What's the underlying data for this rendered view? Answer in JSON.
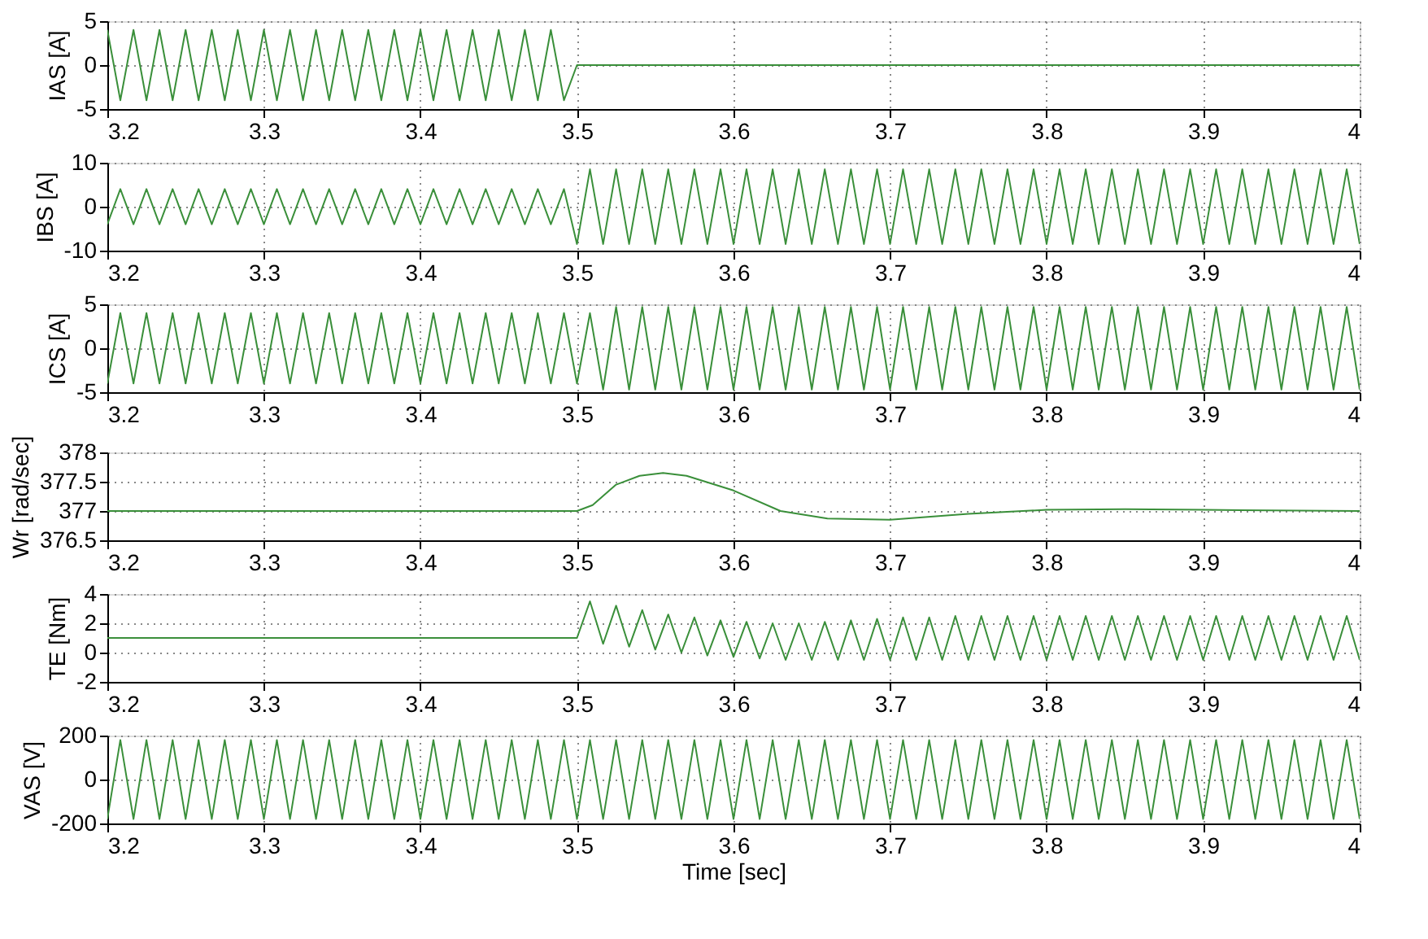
{
  "chart_data": [
    {
      "type": "line",
      "ylabel": "IAS [A]",
      "xlim": [
        3.2,
        4
      ],
      "xticks": [
        3.2,
        3.3,
        3.4,
        3.5,
        3.6,
        3.7,
        3.8,
        3.9,
        4
      ],
      "ylim": [
        -5,
        5
      ],
      "yticks": [
        -5,
        0,
        5
      ],
      "grid": true,
      "x": [
        3.2,
        3.2083,
        3.2167,
        3.225,
        3.2333,
        3.2417,
        3.25,
        3.2583,
        3.2667,
        3.275,
        3.2833,
        3.2917,
        3.3,
        3.3083,
        3.3167,
        3.325,
        3.3333,
        3.3417,
        3.35,
        3.3583,
        3.3667,
        3.375,
        3.3833,
        3.3917,
        3.4,
        3.4083,
        3.4167,
        3.425,
        3.4333,
        3.4417,
        3.45,
        3.4583,
        3.4667,
        3.475,
        3.4833,
        3.4917,
        3.5,
        4
      ],
      "series": [
        {
          "color": "#3a8f3a",
          "values": [
            4,
            -4,
            4,
            -4,
            4,
            -4,
            4,
            -4,
            4,
            -4,
            4,
            -4,
            4,
            -4,
            4,
            -4,
            4,
            -4,
            4,
            -4,
            4,
            -4,
            4,
            -4,
            4,
            -4,
            4,
            -4,
            4,
            -4,
            4,
            -4,
            4,
            -4,
            4,
            -4,
            0,
            0
          ]
        }
      ]
    },
    {
      "type": "line",
      "ylabel": "IBS [A]",
      "xlim": [
        3.2,
        4
      ],
      "xticks": [
        3.2,
        3.3,
        3.4,
        3.5,
        3.6,
        3.7,
        3.8,
        3.9,
        4
      ],
      "ylim": [
        -10,
        10
      ],
      "yticks": [
        -10,
        0,
        10
      ],
      "grid": true,
      "x": [
        3.2,
        3.2083,
        3.2167,
        3.225,
        3.2333,
        3.2417,
        3.25,
        3.2583,
        3.2667,
        3.275,
        3.2833,
        3.2917,
        3.3,
        3.3083,
        3.3167,
        3.325,
        3.3333,
        3.3417,
        3.35,
        3.3583,
        3.3667,
        3.375,
        3.3833,
        3.3917,
        3.4,
        3.4083,
        3.4167,
        3.425,
        3.4333,
        3.4417,
        3.45,
        3.4583,
        3.4667,
        3.475,
        3.4833,
        3.4917,
        3.5,
        3.5083,
        3.5167,
        3.525,
        3.5333,
        3.5417,
        3.55,
        3.5583,
        3.5667,
        3.575,
        3.5833,
        3.5917,
        3.6,
        3.6083,
        3.6167,
        3.625,
        3.6333,
        3.6417,
        3.65,
        3.6583,
        3.6667,
        3.675,
        3.6833,
        3.6917,
        3.7,
        3.7083,
        3.7167,
        3.725,
        3.7333,
        3.7417,
        3.75,
        3.7583,
        3.7667,
        3.775,
        3.7833,
        3.7917,
        3.8,
        3.8083,
        3.8167,
        3.825,
        3.8333,
        3.8417,
        3.85,
        3.8583,
        3.8667,
        3.875,
        3.8833,
        3.8917,
        3.9,
        3.9083,
        3.9167,
        3.925,
        3.9333,
        3.9417,
        3.95,
        3.9583,
        3.9667,
        3.975,
        3.9833,
        3.9917,
        4
      ],
      "series": [
        {
          "color": "#3a8f3a",
          "values": [
            -4,
            4,
            -4,
            4,
            -4,
            4,
            -4,
            4,
            -4,
            4,
            -4,
            4,
            -4,
            4,
            -4,
            4,
            -4,
            4,
            -4,
            4,
            -4,
            4,
            -4,
            4,
            -4,
            4,
            -4,
            4,
            -4,
            4,
            -4,
            4,
            -4,
            4,
            -4,
            4,
            -8.5,
            8.5,
            -8.5,
            8.5,
            -8.5,
            8.5,
            -8.5,
            8.5,
            -8.5,
            8.5,
            -8.5,
            8.5,
            -8.5,
            8.5,
            -8.5,
            8.5,
            -8.5,
            8.5,
            -8.5,
            8.5,
            -8.5,
            8.5,
            -8.5,
            8.5,
            -8.5,
            8.5,
            -8.5,
            8.5,
            -8.5,
            8.5,
            -8.5,
            8.5,
            -8.5,
            8.5,
            -8.5,
            8.5,
            -8.5,
            8.5,
            -8.5,
            8.5,
            -8.5,
            8.5,
            -8.5,
            8.5,
            -8.5,
            8.5,
            -8.5,
            8.5,
            -8.5,
            8.5,
            -8.5,
            8.5,
            -8.5,
            8.5,
            -8.5,
            8.5,
            -8.5,
            8.5,
            -8.5,
            8.5,
            -8.5
          ]
        }
      ]
    },
    {
      "type": "line",
      "ylabel": "ICS [A]",
      "xlim": [
        3.2,
        4
      ],
      "xticks": [
        3.2,
        3.3,
        3.4,
        3.5,
        3.6,
        3.7,
        3.8,
        3.9,
        4
      ],
      "ylim": [
        -5,
        5
      ],
      "yticks": [
        -5,
        0,
        5
      ],
      "grid": true,
      "x": [
        3.2,
        3.2083,
        3.2167,
        3.225,
        3.2333,
        3.2417,
        3.25,
        3.2583,
        3.2667,
        3.275,
        3.2833,
        3.2917,
        3.3,
        3.3083,
        3.3167,
        3.325,
        3.3333,
        3.3417,
        3.35,
        3.3583,
        3.3667,
        3.375,
        3.3833,
        3.3917,
        3.4,
        3.4083,
        3.4167,
        3.425,
        3.4333,
        3.4417,
        3.45,
        3.4583,
        3.4667,
        3.475,
        3.4833,
        3.4917,
        3.5,
        3.5083,
        3.5167,
        3.525,
        3.5333,
        3.5417,
        3.55,
        3.5583,
        3.5667,
        3.575,
        3.5833,
        3.5917,
        3.6,
        3.6083,
        3.6167,
        3.625,
        3.6333,
        3.6417,
        3.65,
        3.6583,
        3.6667,
        3.675,
        3.6833,
        3.6917,
        3.7,
        3.7083,
        3.7167,
        3.725,
        3.7333,
        3.7417,
        3.75,
        3.7583,
        3.7667,
        3.775,
        3.7833,
        3.7917,
        3.8,
        3.8083,
        3.8167,
        3.825,
        3.8333,
        3.8417,
        3.85,
        3.8583,
        3.8667,
        3.875,
        3.8833,
        3.8917,
        3.9,
        3.9083,
        3.9167,
        3.925,
        3.9333,
        3.9417,
        3.95,
        3.9583,
        3.9667,
        3.975,
        3.9833,
        3.9917,
        4
      ],
      "series": [
        {
          "color": "#3a8f3a",
          "values": [
            -4,
            4,
            -4,
            4,
            -4,
            4,
            -4,
            4,
            -4,
            4,
            -4,
            4,
            -4,
            4,
            -4,
            4,
            -4,
            4,
            -4,
            4,
            -4,
            4,
            -4,
            4,
            -4,
            4,
            -4,
            4,
            -4,
            4,
            -4,
            4,
            -4,
            4,
            -4,
            4,
            -4,
            4,
            -4.7,
            4.7,
            -4.7,
            4.7,
            -4.7,
            4.7,
            -4.7,
            4.7,
            -4.7,
            4.7,
            -4.7,
            4.7,
            -4.7,
            4.7,
            -4.7,
            4.7,
            -4.7,
            4.7,
            -4.7,
            4.7,
            -4.7,
            4.7,
            -4.7,
            4.7,
            -4.7,
            4.7,
            -4.7,
            4.7,
            -4.7,
            4.7,
            -4.7,
            4.7,
            -4.7,
            4.7,
            -4.7,
            4.7,
            -4.7,
            4.7,
            -4.7,
            4.7,
            -4.7,
            4.7,
            -4.7,
            4.7,
            -4.7,
            4.7,
            -4.7,
            4.7,
            -4.7,
            4.7,
            -4.7,
            4.7,
            -4.7,
            4.7,
            -4.7,
            4.7,
            -4.7,
            4.7,
            -4.7
          ]
        }
      ]
    },
    {
      "type": "line",
      "ylabel": "Wr [rad/sec]",
      "xlim": [
        3.2,
        4
      ],
      "xticks": [
        3.2,
        3.3,
        3.4,
        3.5,
        3.6,
        3.7,
        3.8,
        3.9,
        4
      ],
      "ylim": [
        376.5,
        378
      ],
      "yticks": [
        376.5,
        377,
        377.5,
        378
      ],
      "grid": true,
      "x": [
        3.2,
        3.5,
        3.51,
        3.525,
        3.54,
        3.555,
        3.57,
        3.6,
        3.63,
        3.66,
        3.7,
        3.75,
        3.8,
        3.85,
        3.9,
        4
      ],
      "series": [
        {
          "color": "#3a8f3a",
          "values": [
            377,
            377,
            377.1,
            377.45,
            377.6,
            377.65,
            377.6,
            377.35,
            377,
            376.87,
            376.85,
            376.95,
            377.02,
            377.03,
            377.02,
            377
          ]
        }
      ]
    },
    {
      "type": "line",
      "ylabel": "TE [Nm]",
      "xlim": [
        3.2,
        4
      ],
      "xticks": [
        3.2,
        3.3,
        3.4,
        3.5,
        3.6,
        3.7,
        3.8,
        3.9,
        4
      ],
      "ylim": [
        -2,
        4
      ],
      "yticks": [
        -2,
        0,
        2,
        4
      ],
      "grid": true,
      "x": [
        3.2,
        3.5,
        3.5083,
        3.5167,
        3.525,
        3.5333,
        3.5417,
        3.55,
        3.5583,
        3.5667,
        3.575,
        3.5833,
        3.5917,
        3.6,
        3.6083,
        3.6167,
        3.625,
        3.6333,
        3.6417,
        3.65,
        3.6583,
        3.6667,
        3.675,
        3.6833,
        3.6917,
        3.7,
        3.7083,
        3.7167,
        3.725,
        3.7333,
        3.7417,
        3.75,
        3.7583,
        3.7667,
        3.775,
        3.7833,
        3.7917,
        3.8,
        3.8083,
        3.8167,
        3.825,
        3.8333,
        3.8417,
        3.85,
        3.8583,
        3.8667,
        3.875,
        3.8833,
        3.8917,
        3.9,
        3.9083,
        3.9167,
        3.925,
        3.9333,
        3.9417,
        3.95,
        3.9583,
        3.9667,
        3.975,
        3.9833,
        3.9917,
        4
      ],
      "series": [
        {
          "color": "#3a8f3a",
          "values": [
            1,
            1,
            3.5,
            0.6,
            3.2,
            0.4,
            2.9,
            0.2,
            2.6,
            0,
            2.4,
            -0.2,
            2.2,
            -0.3,
            2.1,
            -0.4,
            2,
            -0.5,
            2,
            -0.5,
            2.1,
            -0.5,
            2.2,
            -0.5,
            2.3,
            -0.5,
            2.4,
            -0.5,
            2.4,
            -0.5,
            2.5,
            -0.5,
            2.5,
            -0.5,
            2.5,
            -0.5,
            2.5,
            -0.5,
            2.5,
            -0.5,
            2.5,
            -0.5,
            2.5,
            -0.5,
            2.5,
            -0.5,
            2.5,
            -0.5,
            2.5,
            -0.5,
            2.5,
            -0.5,
            2.5,
            -0.5,
            2.5,
            -0.5,
            2.5,
            -0.5,
            2.5,
            -0.5,
            2.5,
            -0.5
          ]
        }
      ]
    },
    {
      "type": "line",
      "ylabel": "VAS [V]",
      "xlabel": "Time [sec]",
      "xlim": [
        3.2,
        4
      ],
      "xticks": [
        3.2,
        3.3,
        3.4,
        3.5,
        3.6,
        3.7,
        3.8,
        3.9,
        4
      ],
      "ylim": [
        -200,
        200
      ],
      "yticks": [
        -200,
        0,
        200
      ],
      "grid": true,
      "x": [
        3.2,
        3.2083,
        3.2167,
        3.225,
        3.2333,
        3.2417,
        3.25,
        3.2583,
        3.2667,
        3.275,
        3.2833,
        3.2917,
        3.3,
        3.3083,
        3.3167,
        3.325,
        3.3333,
        3.3417,
        3.35,
        3.3583,
        3.3667,
        3.375,
        3.3833,
        3.3917,
        3.4,
        3.4083,
        3.4167,
        3.425,
        3.4333,
        3.4417,
        3.45,
        3.4583,
        3.4667,
        3.475,
        3.4833,
        3.4917,
        3.5,
        3.5083,
        3.5167,
        3.525,
        3.5333,
        3.5417,
        3.55,
        3.5583,
        3.5667,
        3.575,
        3.5833,
        3.5917,
        3.6,
        3.6083,
        3.6167,
        3.625,
        3.6333,
        3.6417,
        3.65,
        3.6583,
        3.6667,
        3.675,
        3.6833,
        3.6917,
        3.7,
        3.7083,
        3.7167,
        3.725,
        3.7333,
        3.7417,
        3.75,
        3.7583,
        3.7667,
        3.775,
        3.7833,
        3.7917,
        3.8,
        3.8083,
        3.8167,
        3.825,
        3.8333,
        3.8417,
        3.85,
        3.8583,
        3.8667,
        3.875,
        3.8833,
        3.8917,
        3.9,
        3.9083,
        3.9167,
        3.925,
        3.9333,
        3.9417,
        3.95,
        3.9583,
        3.9667,
        3.975,
        3.9833,
        3.9917,
        4
      ],
      "series": [
        {
          "color": "#3a8f3a",
          "values": [
            -180,
            180,
            -180,
            180,
            -180,
            180,
            -180,
            180,
            -180,
            180,
            -180,
            180,
            -180,
            180,
            -180,
            180,
            -180,
            180,
            -180,
            180,
            -180,
            180,
            -180,
            180,
            -180,
            180,
            -180,
            180,
            -180,
            180,
            -180,
            180,
            -180,
            180,
            -180,
            180,
            -180,
            180,
            -180,
            180,
            -180,
            180,
            -180,
            180,
            -180,
            180,
            -180,
            180,
            -180,
            180,
            -180,
            180,
            -180,
            180,
            -180,
            180,
            -180,
            180,
            -180,
            180,
            -180,
            180,
            -180,
            180,
            -180,
            180,
            -180,
            180,
            -180,
            180,
            -180,
            180,
            -180,
            180,
            -180,
            180,
            -180,
            180,
            -180,
            180,
            -180,
            180,
            -180,
            180,
            -180,
            180,
            -180,
            180,
            -180,
            180,
            -180,
            180,
            -180,
            180,
            -180,
            180,
            -180
          ]
        }
      ]
    }
  ]
}
